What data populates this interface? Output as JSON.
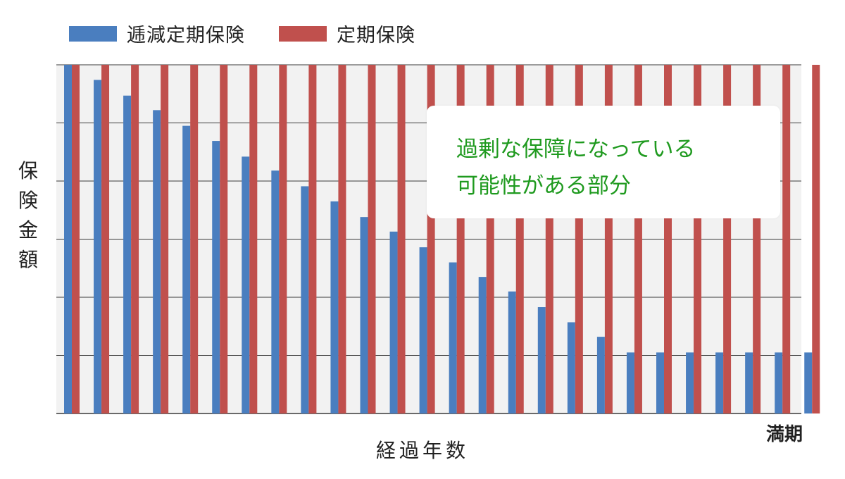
{
  "chart_data": {
    "type": "bar",
    "ylabel": "保険金額",
    "xlabel": "経過年数",
    "x_end_label": "満期",
    "categories": [
      "",
      "",
      "",
      "",
      "",
      "",
      "",
      "",
      "",
      "",
      "",
      "",
      "",
      "",
      "",
      "",
      "",
      "",
      "",
      "",
      "",
      "",
      "",
      "",
      "",
      ""
    ],
    "ylim": [
      0,
      6
    ],
    "grid": true,
    "legend_position": "top-left",
    "series": [
      {
        "name": "逓減定期保険",
        "color": "#4a7ebf",
        "values": [
          6.0,
          5.74,
          5.47,
          5.22,
          4.95,
          4.69,
          4.42,
          4.18,
          3.91,
          3.65,
          3.38,
          3.13,
          2.86,
          2.6,
          2.35,
          2.1,
          1.83,
          1.57,
          1.32,
          1.05,
          1.05,
          1.05,
          1.05,
          1.05,
          1.05,
          1.05
        ]
      },
      {
        "name": "定期保険",
        "color": "#c0504d",
        "values": [
          6,
          6,
          6,
          6,
          6,
          6,
          6,
          6,
          6,
          6,
          6,
          6,
          6,
          6,
          6,
          6,
          6,
          6,
          6,
          6,
          6,
          6,
          6,
          6,
          6,
          6
        ]
      }
    ],
    "annotation": {
      "lines": [
        "過剰な保障になっている",
        "可能性がある部分"
      ],
      "color": "#1f9a1f"
    }
  },
  "legend": {
    "items": [
      {
        "label": "逓減定期保険",
        "color": "#4a7ebf"
      },
      {
        "label": "定期保険",
        "color": "#c0504d"
      }
    ]
  },
  "colors": {
    "plot_bg": "#f2f2f2",
    "grid": "#3a3a3a"
  }
}
